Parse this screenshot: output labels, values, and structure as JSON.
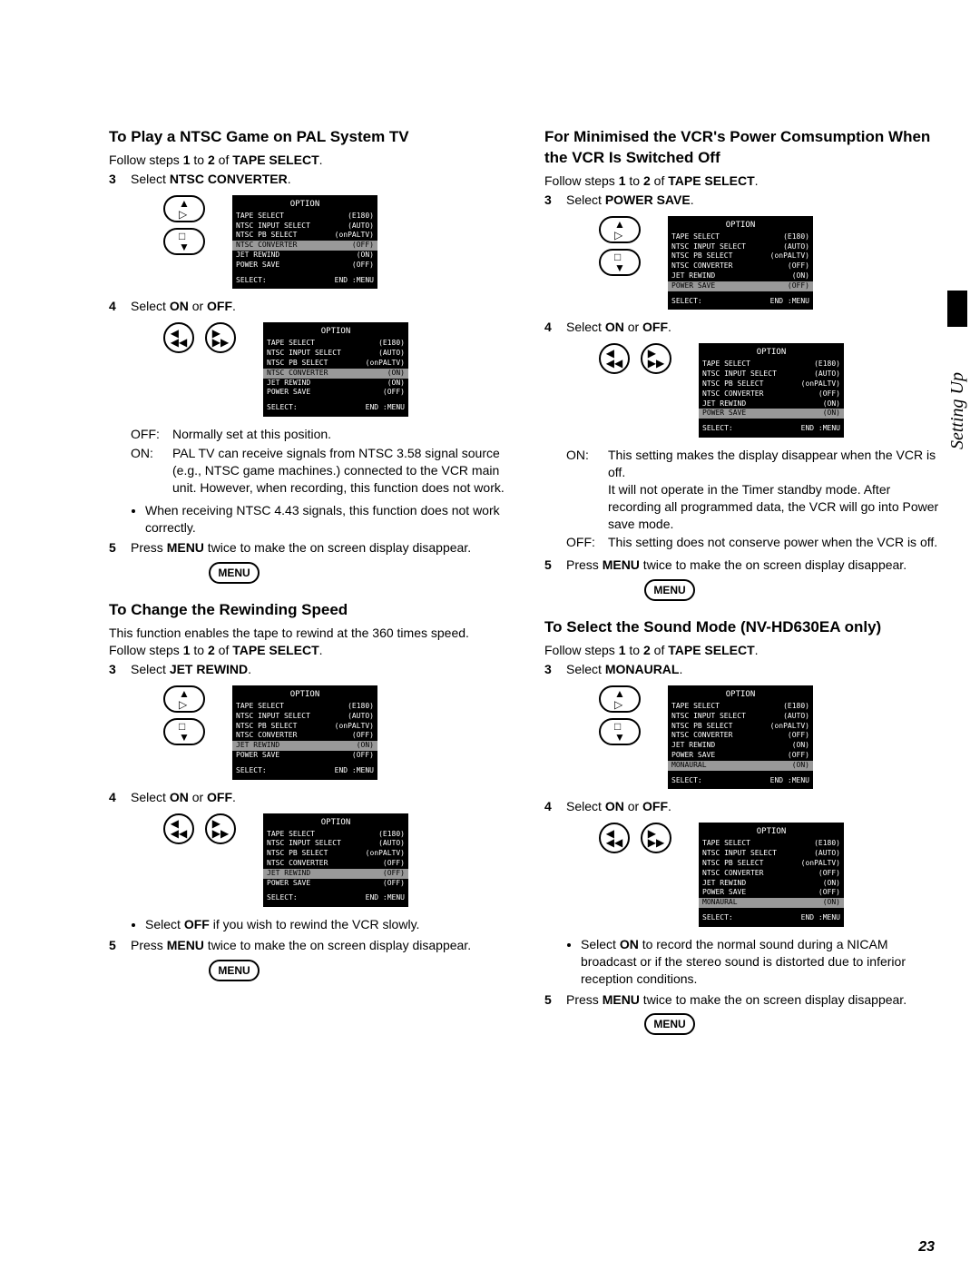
{
  "sideTab": {
    "label": "Setting Up"
  },
  "pageNumber": "23",
  "osd": {
    "title": "OPTION",
    "rows": [
      {
        "label": "TAPE SELECT",
        "value": "(E180)"
      },
      {
        "label": "NTSC INPUT SELECT",
        "value": "(AUTO)"
      },
      {
        "label": "NTSC PB SELECT",
        "value": "(onPALTV)"
      },
      {
        "label": "NTSC CONVERTER",
        "value": "(OFF)"
      },
      {
        "label": "JET REWIND",
        "value": "(ON)"
      },
      {
        "label": "POWER SAVE",
        "value": "(OFF)"
      }
    ],
    "rowsWithMonaural": [
      {
        "label": "TAPE SELECT",
        "value": "(E180)"
      },
      {
        "label": "NTSC INPUT SELECT",
        "value": "(AUTO)"
      },
      {
        "label": "NTSC PB SELECT",
        "value": "(onPALTV)"
      },
      {
        "label": "NTSC CONVERTER",
        "value": "(OFF)"
      },
      {
        "label": "JET REWIND",
        "value": "(ON)"
      },
      {
        "label": "POWER SAVE",
        "value": "(OFF)"
      },
      {
        "label": "MONAURAL",
        "value": "(ON)"
      }
    ],
    "footerLeft": "SELECT:",
    "footerRight": "END :MENU"
  },
  "menuLabel": "MENU",
  "left": {
    "sec1": {
      "heading": "To Play a NTSC Game on PAL System TV",
      "follow": "Follow steps 1 to 2 of TAPE SELECT.",
      "step3": "Select NTSC CONVERTER.",
      "step4": "Select ON or OFF.",
      "offLabel": "OFF:",
      "offText": "Normally set at this position.",
      "onLabel": "ON:",
      "onText": "PAL TV can receive signals from NTSC 3.58 signal source (e.g., NTSC game machines.) connected to the VCR main unit. However, when recording, this function does not work.",
      "bullet1": "When receiving NTSC 4.43 signals, this function does not work correctly.",
      "step5": "Press MENU twice to make the on screen display disappear."
    },
    "sec2": {
      "heading": "To Change the Rewinding Speed",
      "intro": "This function enables the tape to rewind at the 360 times speed.",
      "follow": "Follow steps 1 to 2 of TAPE SELECT.",
      "step3": "Select JET REWIND.",
      "step4": "Select ON or OFF.",
      "bullet1": "Select OFF if you wish to rewind the VCR slowly.",
      "step5": "Press MENU twice to make the on screen display disappear."
    }
  },
  "right": {
    "sec1": {
      "heading": "For Minimised the VCR's Power Comsumption When the VCR Is Switched Off",
      "follow": "Follow steps 1 to 2 of TAPE SELECT.",
      "step3": "Select POWER SAVE.",
      "step4": "Select ON or OFF.",
      "onLabel": "ON:",
      "onText": "This setting makes the display disappear when the VCR is off.\nIt will not operate in the Timer standby mode. After recording all programmed data, the VCR will go into Power save mode.",
      "offLabel": "OFF:",
      "offText": "This setting does not conserve power when the VCR is off.",
      "step5": "Press MENU twice to make the on screen display disappear."
    },
    "sec2": {
      "heading": "To Select the Sound Mode (NV-HD630EA only)",
      "follow": "Follow steps 1 to 2 of TAPE SELECT.",
      "step3": "Select MONAURAL.",
      "step4": "Select ON or OFF.",
      "bullet1": "Select ON to record the normal sound during a NICAM broadcast or if the stereo sound is distorted due to inferior reception conditions.",
      "step5": "Press MENU twice to make the on screen display disappear."
    }
  }
}
